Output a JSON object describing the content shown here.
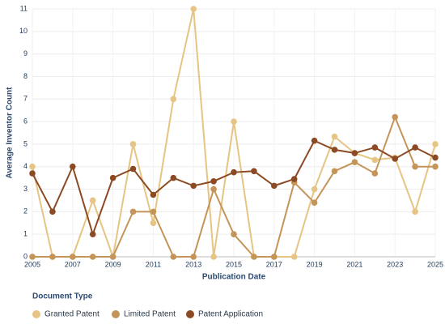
{
  "chart_data": {
    "type": "line",
    "x_label": "Publication Date",
    "y_label": "Average Inventor Count",
    "x": [
      2005,
      2006,
      2007,
      2008,
      2009,
      2010,
      2011,
      2012,
      2013,
      2014,
      2015,
      2016,
      2017,
      2018,
      2019,
      2020,
      2021,
      2022,
      2023,
      2024,
      2025
    ],
    "series": [
      {
        "name": "Granted Patent",
        "color": "#e6c483",
        "values": [
          4,
          0,
          0,
          2.5,
          0,
          5,
          1.5,
          7,
          11,
          0,
          6,
          0,
          0,
          0,
          3,
          5.33,
          4.6,
          4.3,
          4.4,
          2,
          5
        ]
      },
      {
        "name": "Limited Patent",
        "color": "#c49459",
        "values": [
          0,
          0,
          0,
          0,
          0,
          2,
          2,
          0,
          0,
          3,
          1,
          0,
          0,
          3.3,
          2.4,
          3.8,
          4.2,
          3.7,
          6.2,
          4,
          4
        ]
      },
      {
        "name": "Patent Application",
        "color": "#8c4a24",
        "values": [
          3.7,
          2,
          4,
          1,
          3.5,
          3.9,
          2.75,
          3.5,
          3.15,
          3.35,
          3.75,
          3.8,
          3.15,
          3.45,
          5.15,
          4.75,
          4.6,
          4.85,
          4.35,
          4.85,
          4.4
        ]
      }
    ],
    "xlim": [
      2005,
      2025
    ],
    "xticks": [
      2005,
      2007,
      2009,
      2011,
      2013,
      2015,
      2017,
      2019,
      2021,
      2023,
      2025
    ],
    "ylim": [
      0,
      11
    ],
    "yticks": [
      0,
      1,
      2,
      3,
      4,
      5,
      6,
      7,
      8,
      9,
      10,
      11
    ],
    "grid": true,
    "legend_title": "Document Type",
    "legend_position": "bottom"
  }
}
